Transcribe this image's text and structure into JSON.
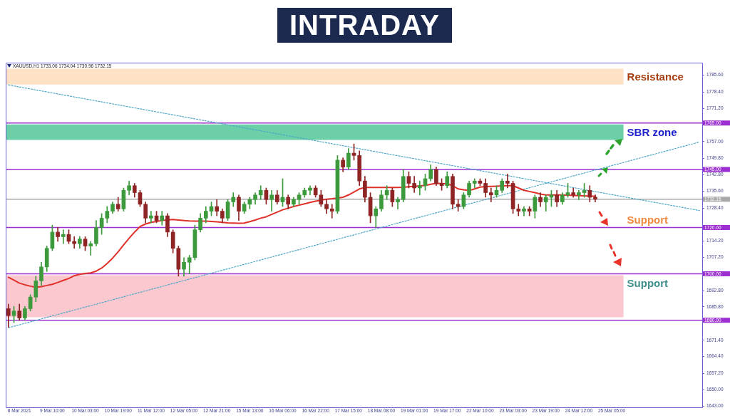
{
  "chart_data": {
    "type": "candlestick",
    "title": "INTRADAY",
    "subtitle": "XAUUSD,H1 1733.06 1734.04 1730.96 1732.15",
    "categories": [
      null,
      null,
      "8 Mar 2021",
      null,
      null,
      null,
      null,
      null,
      "9 Mar 10:00",
      null,
      null,
      null,
      null,
      null,
      "10 Mar 03:00",
      null,
      null,
      null,
      null,
      null,
      "10 Mar 19:00",
      null,
      null,
      null,
      null,
      null,
      "11 Mar 12:00",
      null,
      null,
      null,
      null,
      null,
      "12 Mar 05:00",
      null,
      null,
      null,
      null,
      null,
      "12 Mar 21:00",
      null,
      null,
      null,
      null,
      null,
      "15 Mar 13:00",
      null,
      null,
      null,
      null,
      null,
      "16 Mar 06:00",
      null,
      null,
      null,
      null,
      null,
      "16 Mar 22:00",
      null,
      null,
      null,
      null,
      null,
      "17 Mar 15:00",
      null,
      null,
      null,
      null,
      null,
      "18 Mar 08:00",
      null,
      null,
      null,
      null,
      null,
      "19 Mar 01:00",
      null,
      null,
      null,
      null,
      null,
      "19 Mar 17:00",
      null,
      null,
      null,
      null,
      null,
      "22 Mar 10:00",
      null,
      null,
      null,
      null,
      null,
      "23 Mar 03:00",
      null,
      null,
      null,
      null,
      null,
      "23 Mar 19:00",
      null,
      null,
      null,
      null,
      null,
      "24 Mar 12:00",
      null,
      null,
      null,
      null,
      null,
      "25 Mar 05:00",
      null,
      null,
      null,
      null,
      null,
      null,
      null,
      null,
      null,
      null,
      null,
      null,
      null,
      null,
      null,
      null
    ],
    "ohlc": [
      [
        1685,
        1687,
        1677,
        1682
      ],
      [
        1682,
        1686,
        1679,
        1684
      ],
      [
        1684,
        1687,
        1680,
        1681
      ],
      [
        1681,
        1686,
        1680,
        1685
      ],
      [
        1685,
        1691,
        1684,
        1690
      ],
      [
        1690,
        1699,
        1688,
        1697
      ],
      [
        1697,
        1705,
        1695,
        1703
      ],
      [
        1703,
        1712,
        1701,
        1711
      ],
      [
        1711,
        1721,
        1710,
        1718
      ],
      [
        1718,
        1720,
        1714,
        1716
      ],
      [
        1716,
        1719,
        1713,
        1717
      ],
      [
        1717,
        1719,
        1713,
        1714
      ],
      [
        1714,
        1716,
        1711,
        1713
      ],
      [
        1713,
        1716,
        1711,
        1715
      ],
      [
        1715,
        1716,
        1710,
        1712
      ],
      [
        1712,
        1714,
        1708,
        1713
      ],
      [
        1713,
        1723,
        1712,
        1720
      ],
      [
        1720,
        1726,
        1717,
        1724
      ],
      [
        1724,
        1729,
        1722,
        1727
      ],
      [
        1727,
        1731,
        1726,
        1730
      ],
      [
        1730,
        1733,
        1727,
        1728
      ],
      [
        1728,
        1737,
        1727,
        1736
      ],
      [
        1736,
        1740,
        1734,
        1738
      ],
      [
        1738,
        1739,
        1733,
        1735
      ],
      [
        1735,
        1736,
        1729,
        1730
      ],
      [
        1730,
        1731,
        1722,
        1724
      ],
      [
        1724,
        1727,
        1722,
        1725
      ],
      [
        1725,
        1727,
        1722,
        1723
      ],
      [
        1723,
        1727,
        1721,
        1725
      ],
      [
        1725,
        1726,
        1716,
        1718
      ],
      [
        1718,
        1719,
        1709,
        1711
      ],
      [
        1711,
        1712,
        1699,
        1702
      ],
      [
        1702,
        1707,
        1699,
        1705
      ],
      [
        1705,
        1708,
        1700,
        1707
      ],
      [
        1707,
        1721,
        1706,
        1719
      ],
      [
        1719,
        1726,
        1718,
        1724
      ],
      [
        1724,
        1729,
        1722,
        1727
      ],
      [
        1727,
        1731,
        1725,
        1729
      ],
      [
        1729,
        1732,
        1725,
        1727
      ],
      [
        1727,
        1728,
        1722,
        1724
      ],
      [
        1724,
        1732,
        1723,
        1731
      ],
      [
        1731,
        1735,
        1729,
        1733
      ],
      [
        1733,
        1734,
        1723,
        1727
      ],
      [
        1727,
        1731,
        1726,
        1730
      ],
      [
        1730,
        1733,
        1728,
        1732
      ],
      [
        1732,
        1735,
        1730,
        1734
      ],
      [
        1734,
        1738,
        1732,
        1736
      ],
      [
        1736,
        1737,
        1730,
        1732
      ],
      [
        1732,
        1736,
        1727,
        1734
      ],
      [
        1734,
        1736,
        1730,
        1731
      ],
      [
        1731,
        1741,
        1729,
        1733
      ],
      [
        1733,
        1734,
        1728,
        1730
      ],
      [
        1730,
        1733,
        1729,
        1732
      ],
      [
        1732,
        1735,
        1730,
        1734
      ],
      [
        1734,
        1737,
        1733,
        1736
      ],
      [
        1736,
        1738,
        1734,
        1737
      ],
      [
        1737,
        1738,
        1733,
        1734
      ],
      [
        1734,
        1736,
        1729,
        1730
      ],
      [
        1730,
        1732,
        1726,
        1728
      ],
      [
        1728,
        1730,
        1724,
        1727
      ],
      [
        1727,
        1751,
        1726,
        1749
      ],
      [
        1749,
        1750,
        1744,
        1746
      ],
      [
        1746,
        1754,
        1745,
        1752
      ],
      [
        1752,
        1756,
        1749,
        1751
      ],
      [
        1751,
        1753,
        1738,
        1740
      ],
      [
        1740,
        1742,
        1731,
        1733
      ],
      [
        1733,
        1735,
        1722,
        1725
      ],
      [
        1725,
        1729,
        1720,
        1728
      ],
      [
        1728,
        1736,
        1727,
        1734
      ],
      [
        1734,
        1738,
        1732,
        1736
      ],
      [
        1736,
        1737,
        1729,
        1731
      ],
      [
        1731,
        1733,
        1728,
        1732
      ],
      [
        1732,
        1745,
        1731,
        1742
      ],
      [
        1742,
        1744,
        1737,
        1739
      ],
      [
        1739,
        1742,
        1735,
        1737
      ],
      [
        1737,
        1740,
        1734,
        1738
      ],
      [
        1738,
        1743,
        1736,
        1741
      ],
      [
        1741,
        1747,
        1740,
        1745
      ],
      [
        1745,
        1746,
        1738,
        1739
      ],
      [
        1739,
        1741,
        1736,
        1738
      ],
      [
        1738,
        1744,
        1737,
        1742
      ],
      [
        1742,
        1743,
        1728,
        1730
      ],
      [
        1730,
        1732,
        1727,
        1729
      ],
      [
        1729,
        1735,
        1728,
        1734
      ],
      [
        1734,
        1740,
        1733,
        1739
      ],
      [
        1739,
        1741,
        1737,
        1740
      ],
      [
        1740,
        1741,
        1738,
        1739
      ],
      [
        1739,
        1741,
        1733,
        1735
      ],
      [
        1735,
        1737,
        1731,
        1734
      ],
      [
        1734,
        1738,
        1733,
        1736
      ],
      [
        1736,
        1741,
        1735,
        1740
      ],
      [
        1740,
        1743,
        1737,
        1739
      ],
      [
        1739,
        1740,
        1726,
        1728
      ],
      [
        1728,
        1730,
        1725,
        1727
      ],
      [
        1727,
        1729,
        1725,
        1728
      ],
      [
        1728,
        1729,
        1725,
        1727
      ],
      [
        1727,
        1734,
        1724,
        1733
      ],
      [
        1733,
        1735,
        1729,
        1731
      ],
      [
        1731,
        1734,
        1727,
        1733
      ],
      [
        1733,
        1736,
        1729,
        1734
      ],
      [
        1734,
        1736,
        1729,
        1731
      ],
      [
        1731,
        1735,
        1730,
        1734
      ],
      [
        1734,
        1739,
        1733,
        1735
      ],
      [
        1735,
        1737,
        1733,
        1734
      ],
      [
        1734,
        1736,
        1732,
        1735
      ],
      [
        1735,
        1739,
        1733,
        1736
      ],
      [
        1736,
        1738,
        1731,
        1733
      ],
      [
        1733.06,
        1734.04,
        1730.96,
        1732.15
      ],
      null,
      null,
      null,
      null,
      null,
      null,
      null,
      null,
      null,
      null,
      null,
      null,
      null,
      null,
      null,
      null,
      null,
      null,
      null
    ],
    "colors": [
      "#8e2424",
      "#3c9a3c",
      "#8e2424",
      "#3c9a3c",
      "#3c9a3c",
      "#3c9a3c",
      "#3c9a3c",
      "#3c9a3c",
      "#3c9a3c",
      "#8e2424",
      "#3c9a3c",
      "#8e2424",
      "#8e2424",
      "#3c9a3c",
      "#8e2424",
      "#3c9a3c",
      "#3c9a3c",
      "#3c9a3c",
      "#3c9a3c",
      "#3c9a3c",
      "#8e2424",
      "#3c9a3c",
      "#3c9a3c",
      "#8e2424",
      "#8e2424",
      "#8e2424",
      "#3c9a3c",
      "#8e2424",
      "#3c9a3c",
      "#8e2424",
      "#8e2424",
      "#8e2424",
      "#3c9a3c",
      "#3c9a3c",
      "#3c9a3c",
      "#3c9a3c",
      "#3c9a3c",
      "#3c9a3c",
      "#8e2424",
      "#8e2424",
      "#3c9a3c",
      "#3c9a3c",
      "#8e2424",
      "#3c9a3c",
      "#3c9a3c",
      "#3c9a3c",
      "#3c9a3c",
      "#8e2424",
      "#3c9a3c",
      "#8e2424",
      "#3c9a3c",
      "#8e2424",
      "#3c9a3c",
      "#3c9a3c",
      "#3c9a3c",
      "#3c9a3c",
      "#8e2424",
      "#8e2424",
      "#8e2424",
      "#8e2424",
      "#3c9a3c",
      "#8e2424",
      "#3c9a3c",
      "#8e2424",
      "#8e2424",
      "#8e2424",
      "#8e2424",
      "#3c9a3c",
      "#3c9a3c",
      "#3c9a3c",
      "#8e2424",
      "#3c9a3c",
      "#3c9a3c",
      "#8e2424",
      "#8e2424",
      "#3c9a3c",
      "#3c9a3c",
      "#3c9a3c",
      "#8e2424",
      "#8e2424",
      "#3c9a3c",
      "#8e2424",
      "#8e2424",
      "#3c9a3c",
      "#3c9a3c",
      "#3c9a3c",
      "#8e2424",
      "#8e2424",
      "#8e2424",
      "#3c9a3c",
      "#3c9a3c",
      "#8e2424",
      "#8e2424",
      "#8e2424",
      "#3c9a3c",
      "#8e2424",
      "#3c9a3c",
      "#8e2424",
      "#3c9a3c",
      "#3c9a3c",
      "#8e2424",
      "#3c9a3c",
      "#3c9a3c",
      "#8e2424",
      "#3c9a3c",
      "#3c9a3c",
      "#8e2424",
      "#8e2424",
      null,
      null,
      null,
      null,
      null,
      null,
      null,
      null,
      null,
      null,
      null,
      null,
      null,
      null,
      null,
      null,
      null,
      null,
      null
    ],
    "series": [
      {
        "type": "line",
        "color": "#e0302a",
        "values": [
          1698.5,
          1697.3,
          1696,
          1695.3,
          1694.7,
          1694.2,
          1694.5,
          1695,
          1695.5,
          1696.3,
          1697.2,
          1698,
          1699.2,
          1699.8,
          1700.2,
          1700.4,
          1701.2,
          1702.5,
          1704.5,
          1706.8,
          1709.5,
          1712.5,
          1715.3,
          1718,
          1720.4,
          1721.5,
          1722.2,
          1722.6,
          1723,
          1723.3,
          1723.4,
          1723.2,
          1723,
          1722.8,
          1722.7,
          1722.7,
          1722.7,
          1722.6,
          1722.4,
          1722.2,
          1722,
          1721.9,
          1721.8,
          1721.9,
          1722.5,
          1723.2,
          1724,
          1724.6,
          1725.6,
          1726.6,
          1727.6,
          1728.3,
          1729,
          1729.6,
          1730.2,
          1730.8,
          1731.3,
          1731.7,
          1732.2,
          1732.4,
          1732.7,
          1733,
          1734,
          1735.3,
          1736.6,
          1737.2,
          1737.2,
          1737.2,
          1737.2,
          1737.2,
          1737.2,
          1737.2,
          1737.3,
          1737.5,
          1737.7,
          1737.9,
          1738.1,
          1738.6,
          1739,
          1738.9,
          1738.8,
          1738,
          1736.6,
          1736.2,
          1735.9,
          1736.6,
          1737.4,
          1737.6,
          1737.7,
          1737.8,
          1737.9,
          1738,
          1738,
          1737,
          1736,
          1735.5,
          1735,
          1734.4,
          1734,
          1734,
          1734,
          1734,
          1733.9,
          1733.8,
          1733.7,
          1733.6,
          1733.5,
          1733.5,
          null,
          null,
          null,
          null,
          null,
          null,
          null,
          null,
          null,
          null,
          null,
          null,
          null,
          null,
          null,
          null,
          null,
          null,
          null
        ]
      },
      {
        "type": "line",
        "color": "#4fa8c8",
        "line_style": "dotted",
        "values": [
          1781.4,
          null,
          null,
          null,
          null,
          null,
          null,
          null,
          null,
          null,
          null,
          null,
          null,
          null,
          null,
          null,
          null,
          null,
          null,
          null,
          null,
          null,
          null,
          null,
          null,
          null,
          null,
          null,
          null,
          null,
          null,
          null,
          null,
          null,
          null,
          null,
          null,
          null,
          null,
          null,
          null,
          null,
          null,
          null,
          null,
          null,
          null,
          null,
          null,
          null,
          null,
          null,
          null,
          null,
          null,
          null,
          null,
          null,
          null,
          null,
          null,
          null,
          null,
          null,
          null,
          null,
          null,
          null,
          null,
          null,
          null,
          null,
          null,
          null,
          null,
          null,
          null,
          null,
          null,
          null,
          null,
          null,
          null,
          null,
          null,
          null,
          null,
          null,
          null,
          null,
          null,
          null,
          null,
          null,
          null,
          null,
          null,
          null,
          null,
          null,
          null,
          null,
          null,
          null,
          null,
          null,
          null,
          null,
          null,
          null,
          null,
          null,
          null,
          null,
          null,
          null,
          null,
          null,
          null,
          null,
          null,
          null,
          null,
          null,
          null,
          null,
          1727.3
        ]
      },
      {
        "type": "line",
        "color": "#4fa8c8",
        "line_style": "dotted",
        "values": [
          1676.8,
          null,
          null,
          null,
          null,
          null,
          null,
          null,
          null,
          null,
          null,
          null,
          null,
          null,
          null,
          null,
          null,
          null,
          null,
          null,
          null,
          null,
          null,
          null,
          null,
          null,
          null,
          null,
          null,
          null,
          null,
          null,
          null,
          null,
          null,
          null,
          null,
          null,
          null,
          null,
          null,
          null,
          null,
          null,
          null,
          null,
          null,
          null,
          null,
          null,
          null,
          null,
          null,
          null,
          null,
          null,
          null,
          null,
          null,
          null,
          null,
          null,
          null,
          null,
          null,
          null,
          null,
          null,
          null,
          null,
          null,
          null,
          null,
          null,
          null,
          null,
          null,
          null,
          null,
          null,
          null,
          null,
          null,
          null,
          null,
          null,
          null,
          null,
          null,
          null,
          null,
          null,
          null,
          null,
          null,
          null,
          null,
          null,
          null,
          null,
          null,
          null,
          null,
          null,
          null,
          null,
          null,
          null,
          null,
          null,
          null,
          null,
          null,
          null,
          null,
          null,
          null,
          null,
          null,
          null,
          null,
          null,
          null,
          null,
          null,
          null,
          1756.8
        ]
      }
    ],
    "ylim": [
      1642.5,
      1791
    ],
    "yticks": [
      {
        "value": 1643,
        "label": "1643.00"
      },
      {
        "value": 1650,
        "label": "1650.00"
      },
      {
        "value": 1657.2,
        "label": "1657.20"
      },
      {
        "value": 1664.4,
        "label": "1664.40"
      },
      {
        "value": 1671.4,
        "label": "1671.40"
      },
      {
        "value": 1685.8,
        "label": "1685.80"
      },
      {
        "value": 1692.8,
        "label": "1692.80"
      },
      {
        "value": 1707.2,
        "label": "1707.20"
      },
      {
        "value": 1714.2,
        "label": "1714.20"
      },
      {
        "value": 1728.4,
        "label": "1728.40"
      },
      {
        "value": 1735.6,
        "label": "1735.60"
      },
      {
        "value": 1742.8,
        "label": "1742.80"
      },
      {
        "value": 1749.8,
        "label": "1749.80"
      },
      {
        "value": 1757,
        "label": "1757.00"
      },
      {
        "value": 1771.2,
        "label": "1771.20"
      },
      {
        "value": 1778.4,
        "label": "1778.40"
      },
      {
        "value": 1785.6,
        "label": "1785.60"
      }
    ],
    "ref_lines": [
      {
        "axis": "y",
        "value": 1765,
        "label": "1765.00",
        "color": "#9b2fd0"
      },
      {
        "axis": "y",
        "value": 1745,
        "label": "1745.00",
        "color": "#9b2fd0"
      },
      {
        "axis": "y",
        "value": 1732.15,
        "label": "1732.15",
        "color": "#a8a8a8"
      },
      {
        "axis": "y",
        "value": 1720,
        "label": "1720.00",
        "color": "#9b2fd0"
      },
      {
        "axis": "y",
        "value": 1700,
        "label": "1700.00",
        "color": "#9b2fd0"
      },
      {
        "axis": "y",
        "value": 1680,
        "label": "1680.00",
        "color": "#9b2fd0"
      }
    ],
    "bands": [
      {
        "axis": "y",
        "from": 1781.6,
        "to": 1788.4,
        "label": "Resistance",
        "color": "#fde2c6"
      },
      {
        "axis": "y",
        "from": 1757.7,
        "to": 1764.4,
        "label": "SBR zone",
        "color": "#6ccfa8"
      },
      {
        "axis": "y",
        "from": 1681.3,
        "to": 1699.4,
        "label": "Support",
        "color": "#fcc8d0"
      }
    ],
    "annotations": [
      {
        "text": "Support",
        "y": 1720
      }
    ],
    "marker": "none"
  }
}
